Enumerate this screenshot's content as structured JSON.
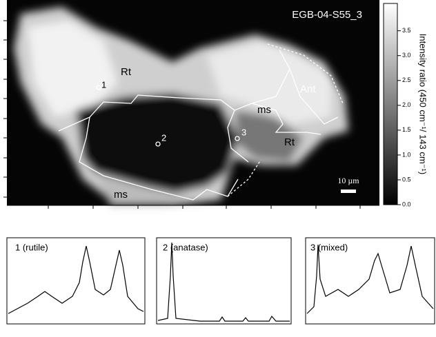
{
  "map": {
    "title": "EGB-04-S55_3",
    "regions": [
      "Rt",
      "Ant",
      "ms",
      "Rt",
      "ms"
    ],
    "points": [
      "1",
      "2",
      "3"
    ],
    "scale_bar": "10 µm"
  },
  "colorbar": {
    "label": "Intensity ratio (450 cm⁻¹/ 143 cm⁻¹)",
    "lim": [
      0,
      4.05
    ],
    "ticks": [
      {
        "value": 0,
        "label": "0.0"
      },
      0.5,
      {
        "value": 1,
        "label": "1.0"
      },
      1.5,
      {
        "value": 2,
        "label": "2.0"
      },
      2.5,
      {
        "value": 3,
        "label": "3.0"
      },
      3.5
    ]
  },
  "spectra": [
    "1 (rutile)",
    "2 (anatase)",
    "3 (mixed)"
  ]
}
